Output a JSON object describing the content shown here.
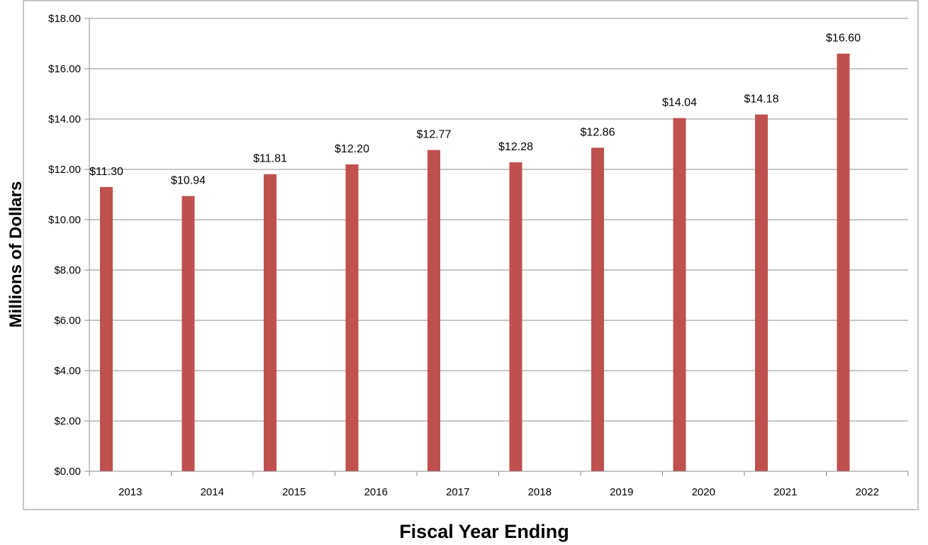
{
  "chart_data": {
    "type": "bar",
    "categories": [
      "2013",
      "2014",
      "2015",
      "2016",
      "2017",
      "2018",
      "2019",
      "2020",
      "2021",
      "2022"
    ],
    "values": [
      11.3,
      10.94,
      11.81,
      12.2,
      12.77,
      12.28,
      12.86,
      14.04,
      14.18,
      16.6
    ],
    "data_labels": [
      "$11.30",
      "$10.94",
      "$11.81",
      "$12.20",
      "$12.77",
      "$12.28",
      "$12.86",
      "$14.04",
      "$14.18",
      "$16.60"
    ],
    "yticks": [
      0,
      2,
      4,
      6,
      8,
      10,
      12,
      14,
      16,
      18
    ],
    "ytick_labels": [
      "$0.00",
      "$2.00",
      "$4.00",
      "$6.00",
      "$8.00",
      "$10.00",
      "$12.00",
      "$14.00",
      "$16.00",
      "$18.00"
    ],
    "title": "",
    "xlabel": "Fiscal Year Ending",
    "ylabel": "Millions of Dollars",
    "ylim": [
      0,
      18
    ],
    "grid": true,
    "legend": "none",
    "bar_color": "#c0504d"
  }
}
